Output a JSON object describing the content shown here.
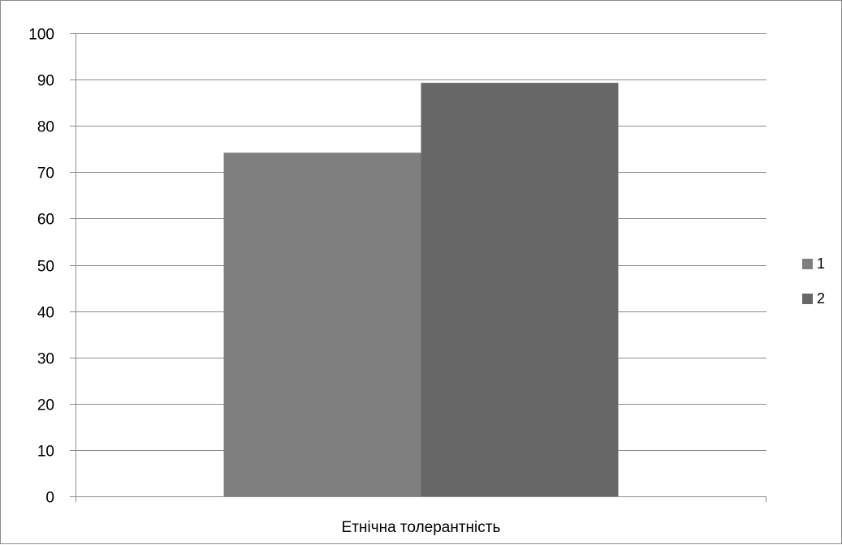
{
  "chart_data": {
    "type": "bar",
    "categories": [
      "Етнічна толерантність"
    ],
    "series": [
      {
        "name": "1",
        "values": [
          74.2
        ],
        "color": "#7f7f7f"
      },
      {
        "name": "2",
        "values": [
          89.3
        ],
        "color": "#676767"
      }
    ],
    "title": "",
    "xlabel": "",
    "ylabel": "",
    "ylim": [
      0,
      100
    ],
    "yticks": [
      "0",
      "10",
      "20",
      "30",
      "40",
      "50",
      "60",
      "70",
      "80",
      "90",
      "100"
    ],
    "grid": true,
    "gridline_color": "#8c8c8c",
    "legend_position": "right"
  }
}
